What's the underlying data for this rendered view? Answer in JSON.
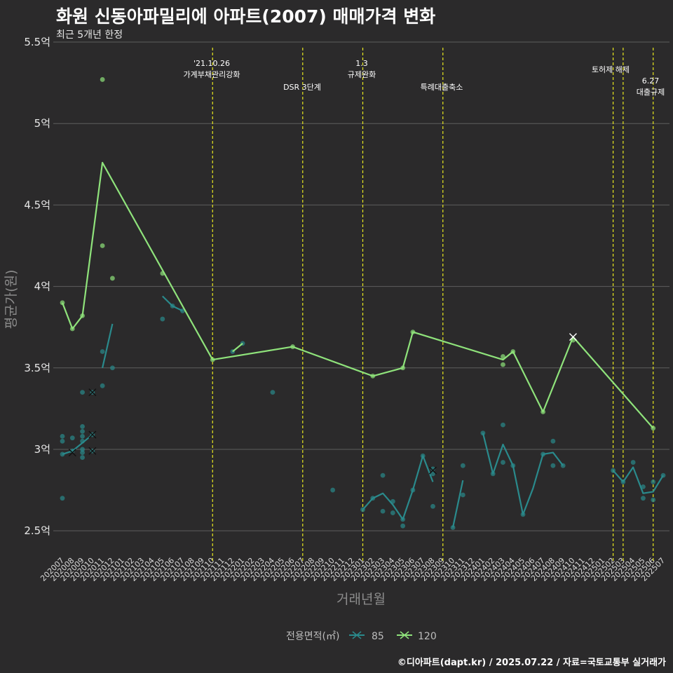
{
  "title": "화원 신동아파밀리에 아파트(2007) 매매가격 변화",
  "subtitle": "최근 5개년 한정",
  "caption": "©디아파트(dapt.kr) / 2025.07.22 / 자료=국토교통부 실거래가",
  "colors": {
    "background": "#2b2a2b",
    "grid": "#5e5e5e",
    "s85": "#2a8a8c",
    "s120": "#8fe37b",
    "vline": "#e8e81e"
  },
  "chart_data": {
    "type": "line",
    "xlabel": "거래년월",
    "ylabel": "평균가(원)",
    "ylim": [
      2.35,
      5.5
    ],
    "y_ticks": [
      {
        "v": 2.5,
        "label": "2.5억"
      },
      {
        "v": 3.0,
        "label": "3억"
      },
      {
        "v": 3.5,
        "label": "3.5억"
      },
      {
        "v": 4.0,
        "label": "4억"
      },
      {
        "v": 4.5,
        "label": "4.5억"
      },
      {
        "v": 5.0,
        "label": "5억"
      },
      {
        "v": 5.5,
        "label": "5.5억"
      }
    ],
    "categories": [
      "202007",
      "202008",
      "202009",
      "202010",
      "202011",
      "202012",
      "202101",
      "202102",
      "202103",
      "202104",
      "202105",
      "202106",
      "202107",
      "202108",
      "202109",
      "202110",
      "202111",
      "202112",
      "202201",
      "202202",
      "202203",
      "202204",
      "202205",
      "202206",
      "202207",
      "202208",
      "202209",
      "202210",
      "202211",
      "202212",
      "202301",
      "202302",
      "202303",
      "202304",
      "202305",
      "202306",
      "202307",
      "202308",
      "202309",
      "202310",
      "202311",
      "202312",
      "202401",
      "202402",
      "202403",
      "202404",
      "202405",
      "202406",
      "202407",
      "202408",
      "202409",
      "202410",
      "202411",
      "202412",
      "202501",
      "202502",
      "202503",
      "202504",
      "202505",
      "202506",
      "202507"
    ],
    "legend_title": "전용면적(㎡)",
    "series": [
      {
        "name": "85",
        "lines": [
          [
            [
              0,
              2.97
            ],
            [
              1,
              2.99
            ],
            [
              2,
              3.04
            ],
            [
              3,
              3.09
            ]
          ],
          [
            [
              4,
              3.5
            ],
            [
              5,
              3.77
            ]
          ],
          [
            [
              10,
              3.94
            ],
            [
              11,
              3.88
            ],
            [
              12,
              3.85
            ]
          ],
          [
            [
              30,
              2.63
            ],
            [
              31,
              2.7
            ],
            [
              32,
              2.73
            ],
            [
              33,
              2.66
            ],
            [
              34,
              2.57
            ],
            [
              35,
              2.75
            ],
            [
              36,
              2.96
            ],
            [
              37,
              2.8
            ]
          ],
          [
            [
              39,
              2.52
            ],
            [
              40,
              2.81
            ]
          ],
          [
            [
              42,
              3.1
            ],
            [
              43,
              2.85
            ],
            [
              44,
              3.03
            ],
            [
              45,
              2.9
            ],
            [
              46,
              2.6
            ],
            [
              47,
              2.76
            ],
            [
              48,
              2.97
            ],
            [
              49,
              2.98
            ],
            [
              50,
              2.9
            ]
          ],
          [
            [
              55,
              2.87
            ],
            [
              56,
              2.8
            ],
            [
              57,
              2.89
            ],
            [
              58,
              2.73
            ],
            [
              59,
              2.74
            ],
            [
              60,
              2.84
            ]
          ]
        ],
        "points": [
          [
            0,
            3.08
          ],
          [
            0,
            3.05
          ],
          [
            0,
            2.97
          ],
          [
            0,
            2.7
          ],
          [
            1,
            3.07
          ],
          [
            1,
            2.99
          ],
          [
            2,
            3.35
          ],
          [
            2,
            3.14
          ],
          [
            2,
            3.11
          ],
          [
            2,
            3.08
          ],
          [
            2,
            3.05
          ],
          [
            2,
            3.0
          ],
          [
            2,
            2.98
          ],
          [
            2,
            2.95
          ],
          [
            3,
            3.35
          ],
          [
            3,
            3.09
          ],
          [
            3,
            2.99
          ],
          [
            4,
            3.6
          ],
          [
            4,
            3.39
          ],
          [
            5,
            3.5
          ],
          [
            10,
            3.8
          ],
          [
            11,
            3.88
          ],
          [
            12,
            3.85
          ],
          [
            17,
            3.6
          ],
          [
            18,
            3.65
          ],
          [
            21,
            3.35
          ],
          [
            27,
            2.75
          ],
          [
            30,
            2.63
          ],
          [
            31,
            2.7
          ],
          [
            32,
            2.84
          ],
          [
            32,
            2.62
          ],
          [
            33,
            2.68
          ],
          [
            33,
            2.61
          ],
          [
            34,
            2.57
          ],
          [
            34,
            2.53
          ],
          [
            35,
            2.75
          ],
          [
            36,
            2.96
          ],
          [
            37,
            2.88
          ],
          [
            37,
            2.85
          ],
          [
            37,
            2.65
          ],
          [
            39,
            2.52
          ],
          [
            40,
            2.9
          ],
          [
            40,
            2.72
          ],
          [
            42,
            3.1
          ],
          [
            43,
            2.85
          ],
          [
            44,
            3.15
          ],
          [
            44,
            2.92
          ],
          [
            45,
            2.9
          ],
          [
            46,
            2.6
          ],
          [
            48,
            2.97
          ],
          [
            49,
            3.05
          ],
          [
            49,
            2.9
          ],
          [
            50,
            2.9
          ],
          [
            55,
            2.87
          ],
          [
            56,
            2.8
          ],
          [
            57,
            2.92
          ],
          [
            58,
            2.77
          ],
          [
            58,
            2.7
          ],
          [
            59,
            2.8
          ],
          [
            59,
            2.69
          ],
          [
            60,
            2.84
          ]
        ],
        "crosses": [
          [
            1,
            2.98
          ],
          [
            3,
            3.35
          ],
          [
            3,
            3.09
          ],
          [
            3,
            2.99
          ],
          [
            37,
            2.87
          ]
        ]
      },
      {
        "name": "120",
        "lines": [
          [
            [
              0,
              3.9
            ],
            [
              1,
              3.74
            ],
            [
              2,
              3.82
            ],
            [
              4,
              4.76
            ],
            [
              15,
              3.55
            ],
            [
              23,
              3.63
            ],
            [
              31,
              3.45
            ],
            [
              34,
              3.5
            ],
            [
              35,
              3.72
            ],
            [
              44,
              3.55
            ],
            [
              45,
              3.6
            ],
            [
              48,
              3.23
            ],
            [
              51,
              3.69
            ],
            [
              59,
              3.13
            ]
          ],
          [
            [
              17,
              3.6
            ],
            [
              18,
              3.65
            ]
          ]
        ],
        "points": [
          [
            0,
            3.9
          ],
          [
            1,
            3.74
          ],
          [
            2,
            3.82
          ],
          [
            4,
            5.27
          ],
          [
            4,
            4.25
          ],
          [
            5,
            4.05
          ],
          [
            10,
            4.08
          ],
          [
            15,
            3.55
          ],
          [
            23,
            3.63
          ],
          [
            31,
            3.45
          ],
          [
            34,
            3.5
          ],
          [
            35,
            3.72
          ],
          [
            44,
            3.57
          ],
          [
            44,
            3.52
          ],
          [
            45,
            3.6
          ],
          [
            48,
            3.23
          ],
          [
            51,
            3.67
          ],
          [
            59,
            3.13
          ]
        ],
        "crosses": [
          [
            51,
            3.69
          ]
        ]
      }
    ],
    "annotations": [
      {
        "x": 15,
        "lines": [
          "'21.10.26",
          "가계부채관리강화"
        ]
      },
      {
        "x": 24,
        "lines": [
          "DSR 3단계"
        ]
      },
      {
        "x": 30,
        "lines": [
          "1.3",
          "규제완화"
        ]
      },
      {
        "x": 38,
        "lines": [
          "특례대출축소"
        ]
      },
      {
        "x": 55,
        "lines": [
          "토허제 해제"
        ]
      },
      {
        "x": 56,
        "lines": []
      },
      {
        "x": 59,
        "lines": [
          "6.27",
          "대출규제"
        ]
      }
    ]
  }
}
